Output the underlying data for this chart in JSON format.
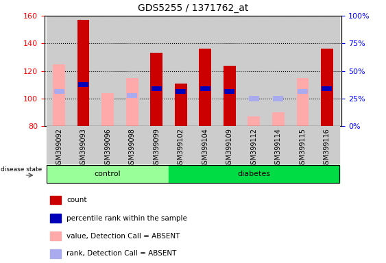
{
  "title": "GDS5255 / 1371762_at",
  "samples": [
    "GSM399092",
    "GSM399093",
    "GSM399096",
    "GSM399098",
    "GSM399099",
    "GSM399102",
    "GSM399104",
    "GSM399109",
    "GSM399112",
    "GSM399114",
    "GSM399115",
    "GSM399116"
  ],
  "n_control": 5,
  "n_diabetes": 7,
  "ylim_left": [
    80,
    160
  ],
  "ylim_right": [
    0,
    100
  ],
  "yticks_left": [
    80,
    100,
    120,
    140,
    160
  ],
  "yticks_right": [
    0,
    25,
    50,
    75,
    100
  ],
  "ytick_labels_right": [
    "0%",
    "25%",
    "50%",
    "75%",
    "100%"
  ],
  "red_bars": [
    null,
    157,
    null,
    null,
    133,
    111,
    136,
    124,
    null,
    null,
    null,
    136
  ],
  "blue_bars": [
    null,
    110,
    null,
    null,
    107,
    105,
    107,
    105,
    null,
    null,
    null,
    107
  ],
  "pink_bars": [
    125,
    null,
    104,
    115,
    null,
    null,
    null,
    null,
    87,
    90,
    115,
    null
  ],
  "lightblue_bars": [
    105,
    null,
    null,
    102,
    null,
    null,
    null,
    null,
    100,
    100,
    105,
    107
  ],
  "red_color": "#cc0000",
  "blue_color": "#0000bb",
  "pink_color": "#ffaaaa",
  "lightblue_color": "#aaaaee",
  "control_color": "#99ff99",
  "diabetes_color": "#00dd44",
  "bg_color": "#cccccc",
  "bar_width": 0.5,
  "legend_items": [
    [
      "#cc0000",
      "count"
    ],
    [
      "#0000bb",
      "percentile rank within the sample"
    ],
    [
      "#ffaaaa",
      "value, Detection Call = ABSENT"
    ],
    [
      "#aaaaee",
      "rank, Detection Call = ABSENT"
    ]
  ]
}
